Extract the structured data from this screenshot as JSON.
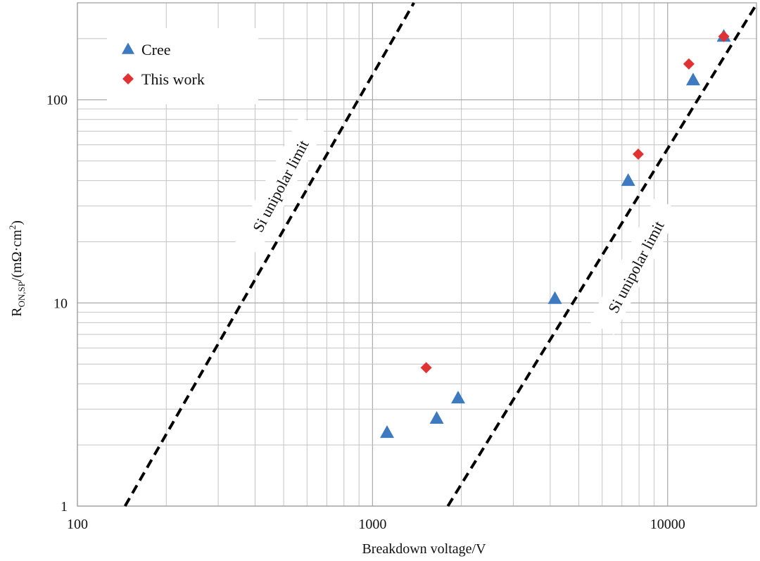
{
  "chart_data": {
    "type": "scatter",
    "xlabel": "Breakdown voltage/V",
    "ylabel": {
      "main": "R",
      "subscript": "ON,SP",
      "units": "/(mΩ·cm",
      "superscript": "2",
      "close": ")"
    },
    "xscale": "log",
    "yscale": "log",
    "xlim": [
      100,
      20000
    ],
    "ylim": [
      1,
      300
    ],
    "grid": true,
    "legend_position": "top-left",
    "x_tick_labels": [
      {
        "value": 100,
        "label": "100"
      },
      {
        "value": 1000,
        "label": "1000"
      },
      {
        "value": 10000,
        "label": "10000"
      }
    ],
    "y_tick_labels": [
      {
        "value": 1,
        "label": "1"
      },
      {
        "value": 10,
        "label": "10"
      },
      {
        "value": 100,
        "label": "100"
      }
    ],
    "series": [
      {
        "name": "Cree",
        "marker": "triangle",
        "color": "#3d7abf",
        "points": [
          {
            "x": 1120,
            "y": 2.3
          },
          {
            "x": 1650,
            "y": 2.7
          },
          {
            "x": 1950,
            "y": 3.4
          },
          {
            "x": 4150,
            "y": 10.5
          },
          {
            "x": 7350,
            "y": 40
          },
          {
            "x": 12200,
            "y": 125
          },
          {
            "x": 15500,
            "y": 205
          }
        ]
      },
      {
        "name": "This work",
        "marker": "diamond",
        "color": "#e03232",
        "points": [
          {
            "x": 1520,
            "y": 4.8
          },
          {
            "x": 7950,
            "y": 54
          },
          {
            "x": 11800,
            "y": 150
          },
          {
            "x": 15500,
            "y": 205
          }
        ]
      }
    ],
    "reference_lines": [
      {
        "label": "Si unipolar limit",
        "style": "dashed",
        "color": "#000000",
        "from": {
          "x": 145,
          "y": 1
        },
        "to": {
          "x": 1690,
          "y": 500
        }
      },
      {
        "label": "Si unipolar limit",
        "style": "dashed",
        "color": "#000000",
        "from": {
          "x": 1800,
          "y": 1
        },
        "to": {
          "x": 20000,
          "y": 295
        }
      }
    ]
  }
}
